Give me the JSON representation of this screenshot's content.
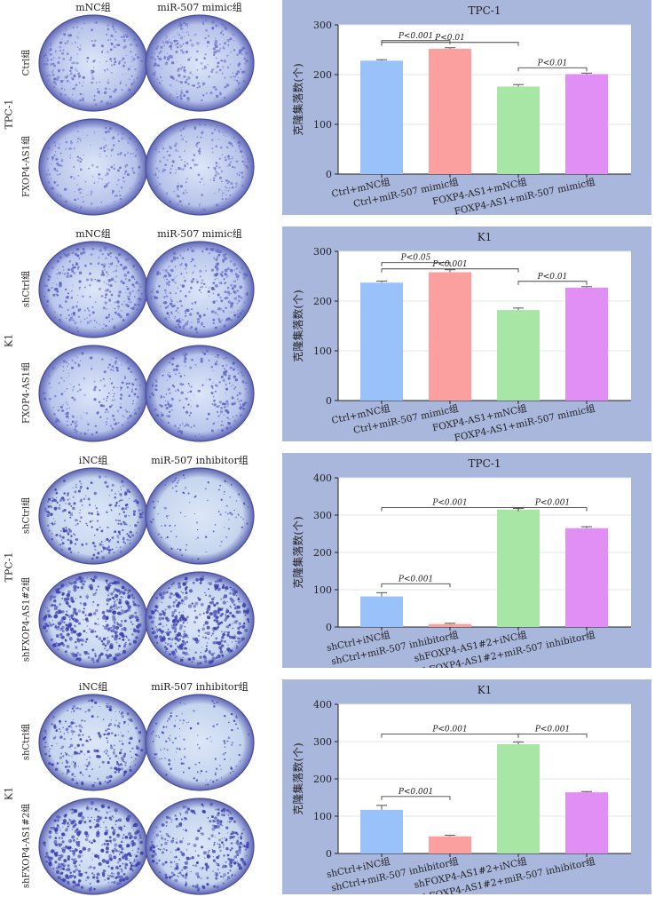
{
  "figure": {
    "panels": [
      {
        "cell_line": "TPC-1",
        "col_labels": [
          "mNC组",
          "miR-507 mimic组"
        ],
        "row_labels": [
          "Ctrl组",
          "FXOP4-AS1组"
        ],
        "dish_density": [
          [
            0.45,
            0.55
          ],
          [
            0.35,
            0.4
          ]
        ],
        "dish_color": "#6a6fc6",
        "dish_bg": "#b7c3ea"
      },
      {
        "cell_line": "K1",
        "col_labels": [
          "mNC组",
          "miR-507 mimic组"
        ],
        "row_labels": [
          "shCtrl组",
          "FXOP4-AS1组"
        ],
        "dish_density": [
          [
            0.55,
            0.6
          ],
          [
            0.4,
            0.5
          ]
        ],
        "dish_color": "#5d63c0",
        "dish_bg": "#b9c6ec"
      },
      {
        "cell_line": "TPC-1",
        "col_labels": [
          "iNC组",
          "miR-507 inhibitor组"
        ],
        "row_labels": [
          "shCtrl组",
          "shFXOP4-AS1#2组"
        ],
        "dish_density": [
          [
            0.5,
            0.1
          ],
          [
            0.95,
            0.9
          ]
        ],
        "dish_color": "#3d3fb0",
        "dish_bg": "#c6d6ee"
      },
      {
        "cell_line": "K1",
        "col_labels": [
          "iNC组",
          "miR-507 inhibitor组"
        ],
        "row_labels": [
          "shCtrl组",
          "shFXOP4-AS1#2组"
        ],
        "dish_density": [
          [
            0.55,
            0.2
          ],
          [
            0.9,
            0.7
          ]
        ],
        "dish_color": "#3d3fb0",
        "dish_bg": "#c4d5ee"
      }
    ]
  },
  "chart_data": [
    {
      "type": "bar",
      "title": "TPC-1",
      "ylabel": "克隆集落数(个)",
      "xlabel": "",
      "ylim": [
        0,
        300
      ],
      "yticks": [
        0,
        100,
        200,
        300
      ],
      "categories": [
        "Ctrl+mNC组",
        "Ctrl+miR-507 mimic组",
        "FOXP4-AS1+mNC组",
        "FOXP4-AS1+miR-507 mimic组"
      ],
      "values": [
        228,
        252,
        176,
        201
      ],
      "errors": [
        2,
        2,
        4,
        2
      ],
      "colors": [
        "#99c2fb",
        "#fb9f9f",
        "#a8e6a6",
        "#e18ff5"
      ],
      "annotations": [
        {
          "from": 0,
          "to": 1,
          "label": "P<0.001",
          "level": 1
        },
        {
          "from": 0,
          "to": 2,
          "label": "P<0.01",
          "level": 2
        },
        {
          "from": 2,
          "to": 3,
          "label": "P<0.01",
          "level": 1
        }
      ]
    },
    {
      "type": "bar",
      "title": "K1",
      "ylabel": "克隆集落数(个)",
      "xlabel": "",
      "ylim": [
        0,
        300
      ],
      "yticks": [
        0,
        100,
        200,
        300
      ],
      "categories": [
        "Ctrl+mNC组",
        "Ctrl+miR-507 mimic组",
        "FOXP4-AS1+mNC组",
        "FOXP4-AS1+miR-507 mimic组"
      ],
      "values": [
        237,
        258,
        182,
        227
      ],
      "errors": [
        3,
        5,
        4,
        2
      ],
      "colors": [
        "#99c2fb",
        "#fb9f9f",
        "#a8e6a6",
        "#e18ff5"
      ],
      "annotations": [
        {
          "from": 0,
          "to": 1,
          "label": "P<0.05",
          "level": 1
        },
        {
          "from": 0,
          "to": 2,
          "label": "P<0.001",
          "level": 2
        },
        {
          "from": 2,
          "to": 3,
          "label": "P<0.01",
          "level": 1
        }
      ]
    },
    {
      "type": "bar",
      "title": "TPC-1",
      "ylabel": "克隆集落数(个)",
      "xlabel": "",
      "ylim": [
        0,
        400
      ],
      "yticks": [
        0,
        100,
        200,
        300,
        400
      ],
      "categories": [
        "shCtrl+iNC组",
        "shCtrl+miR-507 inhibitor组",
        "shFOXP4-AS1#2+iNC组",
        "shFOXP4-AS1#2+miR-507 inhibitor组"
      ],
      "values": [
        82,
        8,
        315,
        265
      ],
      "errors": [
        10,
        2,
        3,
        4
      ],
      "colors": [
        "#99c2fb",
        "#fb9f9f",
        "#a8e6a6",
        "#e18ff5"
      ],
      "annotations": [
        {
          "from": 0,
          "to": 1,
          "label": "P<0.001",
          "level": 0
        },
        {
          "from": 0,
          "to": 2,
          "label": "P<0.001",
          "level": 3
        },
        {
          "from": 2,
          "to": 3,
          "label": "P<0.001",
          "level": 3
        }
      ]
    },
    {
      "type": "bar",
      "title": "K1",
      "ylabel": "克隆集落数(个)",
      "xlabel": "",
      "ylim": [
        0,
        400
      ],
      "yticks": [
        0,
        100,
        200,
        300,
        400
      ],
      "categories": [
        "shCtrl+iNC组",
        "shCtrl+miR-507 inhibitor组",
        "shFOXP4-AS1#2+iNC组",
        "shFOXP4-AS1#2+miR-507 inhibitor组"
      ],
      "values": [
        117,
        46,
        293,
        164
      ],
      "errors": [
        12,
        3,
        6,
        2
      ],
      "colors": [
        "#99c2fb",
        "#fb9f9f",
        "#a8e6a6",
        "#e18ff5"
      ],
      "annotations": [
        {
          "from": 0,
          "to": 1,
          "label": "P<0.001",
          "level": 0
        },
        {
          "from": 0,
          "to": 2,
          "label": "P<0.001",
          "level": 3
        },
        {
          "from": 2,
          "to": 3,
          "label": "P<0.001",
          "level": 3
        }
      ]
    }
  ]
}
